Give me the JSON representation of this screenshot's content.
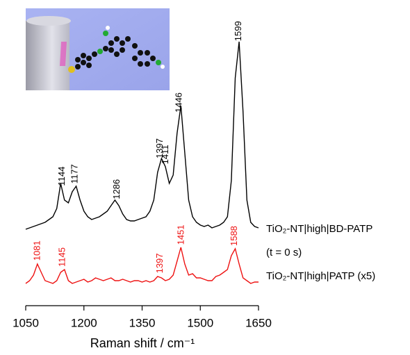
{
  "chart_data": {
    "type": "line",
    "x_label": "Raman shift / cm⁻¹",
    "x": [
      1050,
      1060,
      1070,
      1080,
      1090,
      1100,
      1110,
      1120,
      1130,
      1140,
      1150,
      1160,
      1170,
      1180,
      1190,
      1200,
      1210,
      1220,
      1230,
      1240,
      1250,
      1260,
      1270,
      1280,
      1290,
      1300,
      1310,
      1320,
      1330,
      1340,
      1350,
      1360,
      1370,
      1380,
      1390,
      1400,
      1410,
      1420,
      1430,
      1440,
      1450,
      1460,
      1470,
      1480,
      1490,
      1500,
      1510,
      1520,
      1530,
      1540,
      1550,
      1560,
      1570,
      1580,
      1590,
      1600,
      1610,
      1620,
      1630,
      1640,
      1650
    ],
    "xlim": [
      1050,
      1650
    ],
    "xticks": [
      1050,
      1200,
      1350,
      1500,
      1650
    ],
    "ylim": [
      0,
      100
    ],
    "series": [
      {
        "name": "TiO₂-NT|high|BD-PATP",
        "note": "(t = 0 s)",
        "color": "#000000",
        "values": [
          27.5,
          28,
          28.5,
          29,
          29.5,
          30,
          31,
          32,
          35,
          44,
          38,
          37,
          41,
          43,
          38,
          34,
          32,
          31,
          31.5,
          32,
          33,
          34,
          36,
          38,
          36,
          33,
          31,
          30.5,
          30.5,
          31,
          31.5,
          32,
          34,
          38,
          48,
          53,
          50,
          44,
          47,
          62,
          72,
          55,
          38,
          32,
          30,
          29,
          28.5,
          29,
          28,
          28.5,
          29,
          30,
          32,
          45,
          82,
          95,
          70,
          38,
          30,
          28.5,
          28
        ],
        "peaks": [
          1144,
          1177,
          1286,
          1397,
          1411,
          1446,
          1599
        ]
      },
      {
        "name": "TiO₂-NT|high|PATP (x5)",
        "color": "#ee1111",
        "values": [
          8,
          9,
          11,
          15,
          12,
          9,
          8.5,
          8,
          9,
          12,
          13,
          9,
          8,
          8.5,
          9,
          9.5,
          8.5,
          9,
          10,
          9.5,
          9,
          9.5,
          10,
          9,
          9,
          9.5,
          9,
          8.5,
          9,
          9,
          8.5,
          9,
          8.5,
          9,
          10.5,
          10,
          9,
          9.5,
          11,
          16,
          21,
          15,
          11,
          11.5,
          10,
          10,
          9.5,
          9,
          9,
          10.5,
          11,
          12,
          13,
          18,
          20.5,
          15,
          10,
          9,
          8,
          8.5,
          8.5
        ],
        "peaks": [
          1081,
          1145,
          1397,
          1451,
          1588
        ]
      }
    ]
  }
}
